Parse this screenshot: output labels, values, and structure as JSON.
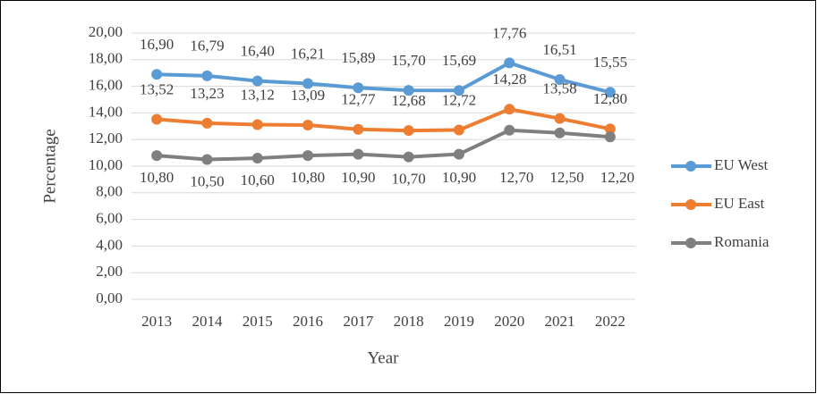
{
  "chart_data": {
    "type": "line",
    "x_label": "Year",
    "y_label": "Percentage",
    "categories": [
      "2013",
      "2014",
      "2015",
      "2016",
      "2017",
      "2018",
      "2019",
      "2020",
      "2021",
      "2022"
    ],
    "series": [
      {
        "name": "EU West",
        "color": "#5b9bd5",
        "values": [
          16.9,
          16.79,
          16.4,
          16.21,
          15.89,
          15.7,
          15.69,
          17.76,
          16.51,
          15.55
        ],
        "value_labels": [
          "16,90",
          "16,79",
          "16,40",
          "16,21",
          "15,89",
          "15,70",
          "15,69",
          "17,76",
          "16,51",
          "15,55"
        ]
      },
      {
        "name": "EU East",
        "color": "#ed7d31",
        "values": [
          13.52,
          13.23,
          13.12,
          13.09,
          12.77,
          12.68,
          12.72,
          14.28,
          13.58,
          12.8
        ],
        "value_labels": [
          "13,52",
          "13,23",
          "13,12",
          "13,09",
          "12,77",
          "12,68",
          "12,72",
          "14,28",
          "13,58",
          "12,80"
        ]
      },
      {
        "name": "Romania",
        "color": "#7f7f7f",
        "values": [
          10.8,
          10.5,
          10.6,
          10.8,
          10.9,
          10.7,
          10.9,
          12.7,
          12.5,
          12.2
        ],
        "value_labels": [
          "10,80",
          "10,50",
          "10,60",
          "10,80",
          "10,90",
          "10,70",
          "10,90",
          "12,70",
          "12,50",
          "12,20"
        ]
      }
    ],
    "ylim": [
      0,
      20
    ],
    "yticks": [
      {
        "value": 0,
        "label": "0,00"
      },
      {
        "value": 2,
        "label": "2,00"
      },
      {
        "value": 4,
        "label": "4,00"
      },
      {
        "value": 6,
        "label": "6,00"
      },
      {
        "value": 8,
        "label": "8,00"
      },
      {
        "value": 10,
        "label": "10,00"
      },
      {
        "value": 12,
        "label": "12,00"
      },
      {
        "value": 14,
        "label": "14,00"
      },
      {
        "value": 16,
        "label": "16,00"
      },
      {
        "value": 18,
        "label": "18,00"
      },
      {
        "value": 20,
        "label": "20,00"
      }
    ],
    "grid": true,
    "legend": "right"
  }
}
